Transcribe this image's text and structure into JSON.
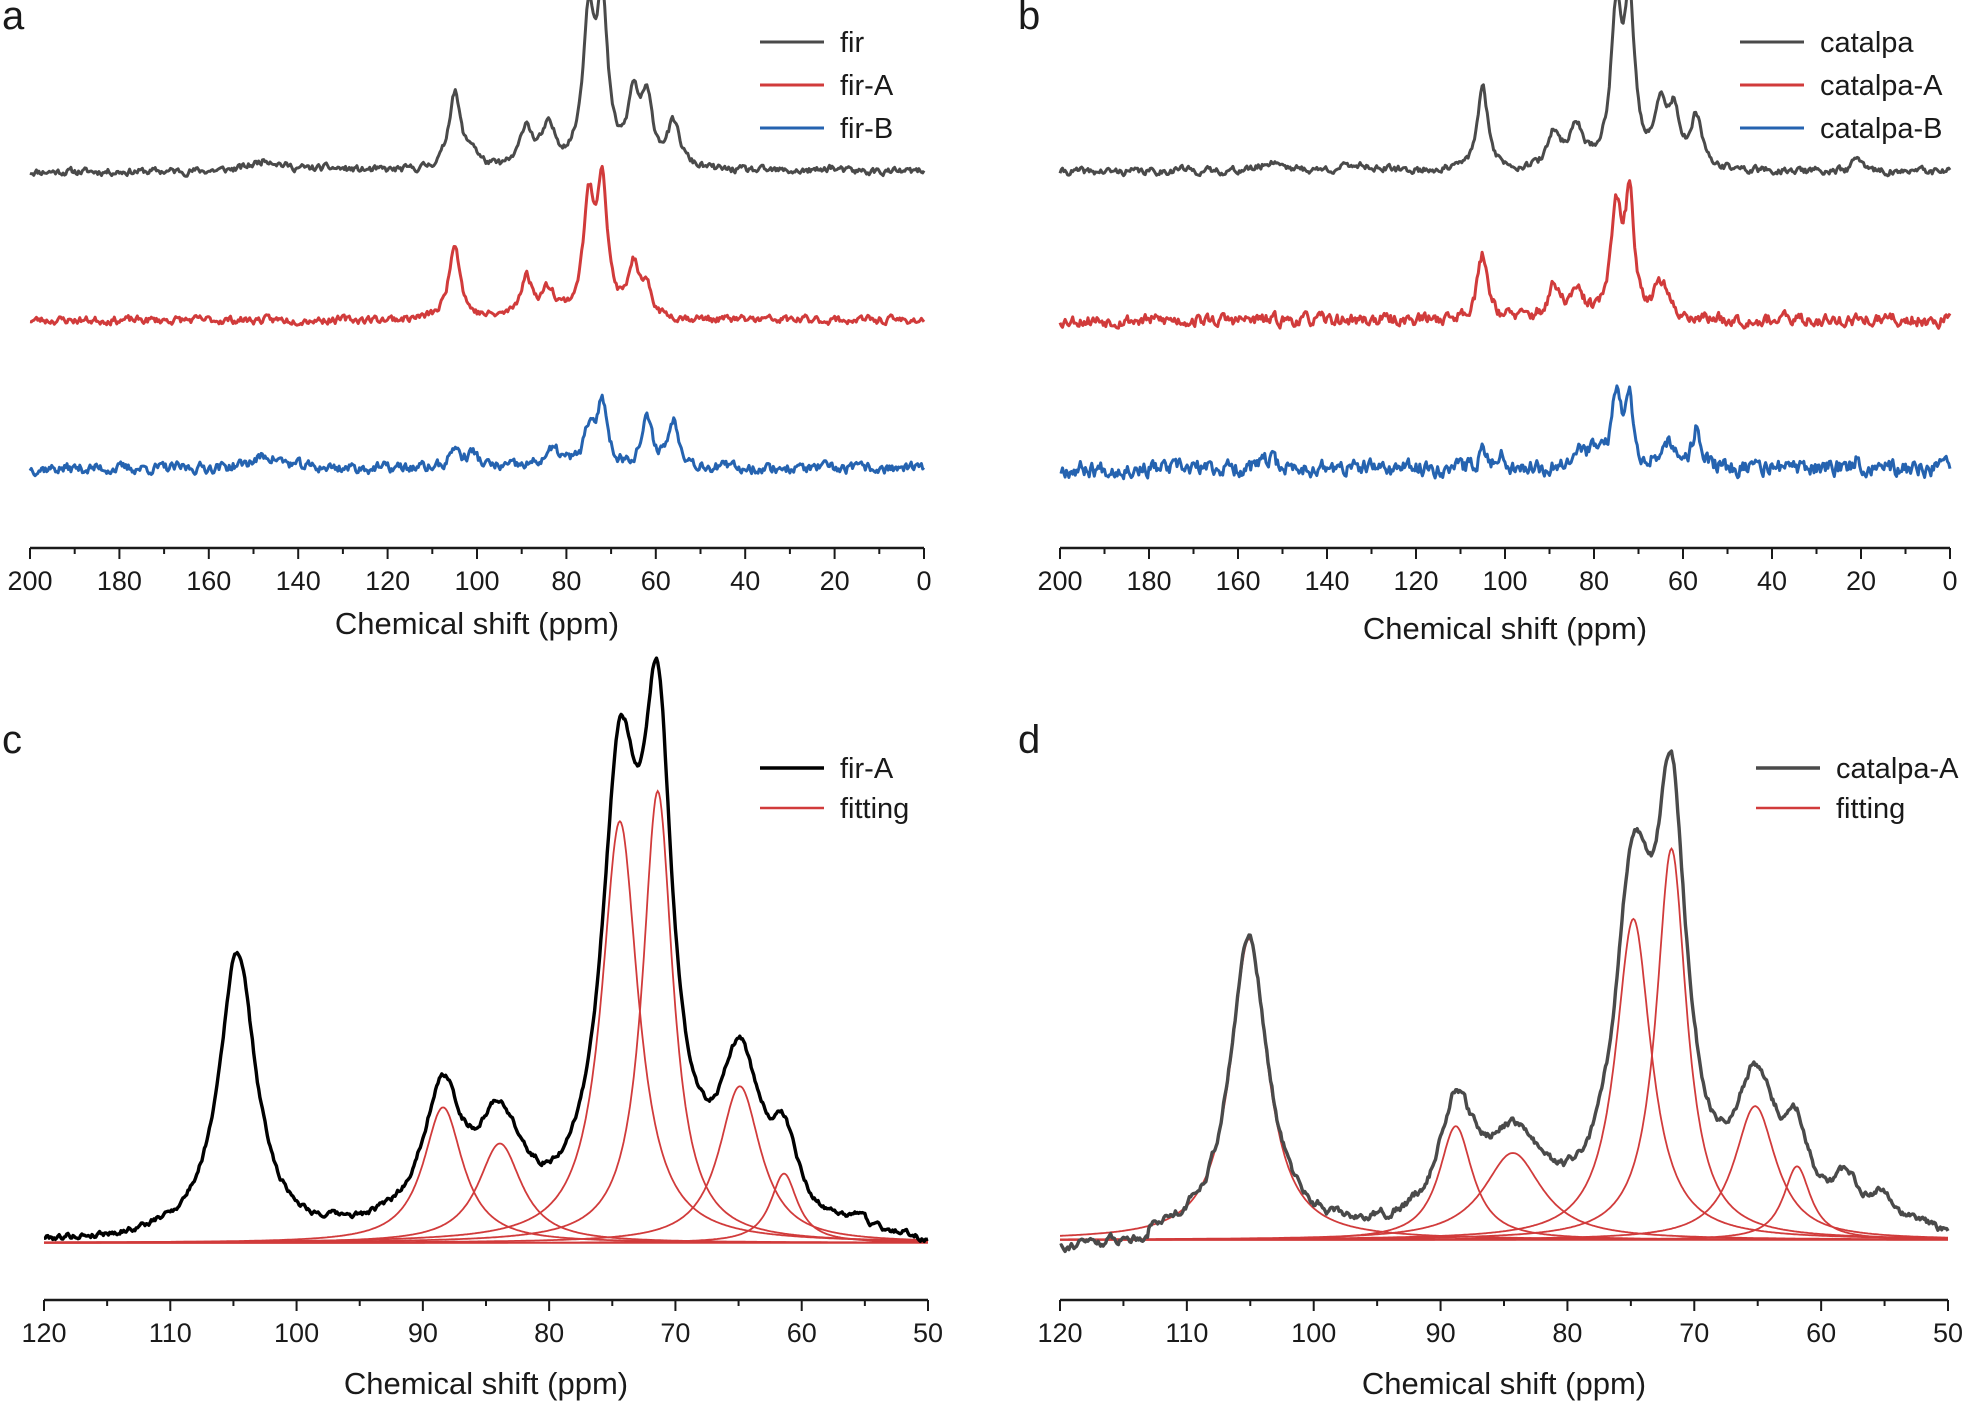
{
  "chart_data": [
    {
      "panel": "a",
      "type": "line",
      "xlabel": "Chemical shift (ppm)",
      "ylabel": "",
      "xlim": [
        200,
        0
      ],
      "xticks": [
        200,
        180,
        160,
        140,
        120,
        100,
        80,
        60,
        40,
        20,
        0
      ],
      "legend_position": "top-right",
      "series": [
        {
          "name": "fir",
          "color": "#4a4a4a",
          "offset": 2.0,
          "noise": 0.02,
          "seed": 11,
          "peaks": [
            [
              147,
              0.14,
              4
            ],
            [
              133,
              0.03,
              5
            ],
            [
              105,
              0.95,
              1.6
            ],
            [
              101,
              0.2,
              1.5
            ],
            [
              89,
              0.5,
              1.6
            ],
            [
              84,
              0.46,
              2
            ],
            [
              75,
              1.75,
              1.6
            ],
            [
              72,
              1.85,
              1.5
            ],
            [
              65,
              0.8,
              1.5
            ],
            [
              62,
              0.75,
              1.6
            ],
            [
              56,
              0.52,
              1.8
            ],
            [
              21,
              0.06,
              1
            ]
          ]
        },
        {
          "name": "fir-A",
          "color": "#d13b3b",
          "offset": 1.0,
          "noise": 0.022,
          "seed": 23,
          "peaks": [
            [
              105,
              0.95,
              1.5
            ],
            [
              89,
              0.48,
              1.6
            ],
            [
              84,
              0.32,
              2
            ],
            [
              75,
              1.33,
              1.5
            ],
            [
              72,
              1.6,
              1.4
            ],
            [
              65,
              0.62,
              1.4
            ],
            [
              62,
              0.3,
              1.4
            ]
          ]
        },
        {
          "name": "fir-B",
          "color": "#2563b0",
          "offset": 0.0,
          "noise": 0.03,
          "seed": 37,
          "peaks": [
            [
              147,
              0.15,
              4
            ],
            [
              105,
              0.25,
              1.2
            ],
            [
              101,
              0.18,
              1.5
            ],
            [
              83,
              0.2,
              2.5
            ],
            [
              75,
              0.42,
              1.3
            ],
            [
              72,
              0.82,
              1.3
            ],
            [
              62,
              0.55,
              1.5
            ],
            [
              56,
              0.55,
              1.6
            ]
          ]
        }
      ]
    },
    {
      "panel": "b",
      "type": "line",
      "xlabel": "Chemical shift (ppm)",
      "ylabel": "",
      "xlim": [
        200,
        0
      ],
      "xticks": [
        200,
        180,
        160,
        140,
        120,
        100,
        80,
        60,
        40,
        20,
        0
      ],
      "legend_position": "top-right",
      "series": [
        {
          "name": "catalpa",
          "color": "#4a4a4a",
          "offset": 2.0,
          "noise": 0.02,
          "seed": 41,
          "peaks": [
            [
              173,
              0.04,
              1.5
            ],
            [
              152,
              0.12,
              3
            ],
            [
              133,
              0.08,
              4
            ],
            [
              105,
              1.0,
              1.5
            ],
            [
              89,
              0.42,
              1.6
            ],
            [
              84,
              0.5,
              2
            ],
            [
              75,
              1.8,
              1.5
            ],
            [
              72,
              1.9,
              1.4
            ],
            [
              65,
              0.7,
              1.5
            ],
            [
              62,
              0.65,
              1.5
            ],
            [
              57,
              0.6,
              1.5
            ],
            [
              21,
              0.18,
              1
            ]
          ]
        },
        {
          "name": "catalpa-A",
          "color": "#d13b3b",
          "offset": 1.0,
          "noise": 0.035,
          "seed": 53,
          "peaks": [
            [
              105,
              0.78,
              1.5
            ],
            [
              89,
              0.35,
              1.6
            ],
            [
              84,
              0.28,
              2
            ],
            [
              75,
              1.25,
              1.4
            ],
            [
              72,
              1.4,
              1.3
            ],
            [
              65,
              0.42,
              1.8
            ]
          ]
        },
        {
          "name": "catalpa-B",
          "color": "#2563b0",
          "offset": 0.0,
          "noise": 0.045,
          "seed": 67,
          "peaks": [
            [
              153,
              0.1,
              2
            ],
            [
              105,
              0.2,
              1.2
            ],
            [
              101,
              0.15,
              1.3
            ],
            [
              84,
              0.25,
              1.5
            ],
            [
              80,
              0.2,
              1.5
            ],
            [
              75,
              0.9,
              1.2
            ],
            [
              72,
              0.8,
              1.1
            ],
            [
              64,
              0.35,
              1.5
            ],
            [
              57,
              0.48,
              1.2
            ],
            [
              21,
              0.12,
              1
            ]
          ]
        }
      ]
    },
    {
      "panel": "c",
      "type": "line",
      "xlabel": "Chemical shift (ppm)",
      "ylabel": "",
      "xlim": [
        120,
        50
      ],
      "xticks": [
        120,
        110,
        100,
        90,
        80,
        70,
        60,
        50
      ],
      "legend_position": "top-right",
      "series": [
        {
          "name": "fir-A",
          "color": "#000000",
          "width": 3.4,
          "noise": 0.008,
          "seed": 79,
          "components": [
            [
              104.7,
              0.95,
              1.75
            ],
            [
              88.5,
              0.45,
              1.9
            ],
            [
              83.9,
              0.33,
              2.1
            ],
            [
              74.4,
              1.4,
              1.75
            ],
            [
              71.4,
              1.5,
              1.45
            ],
            [
              64.9,
              0.52,
              2.0
            ],
            [
              61.4,
              0.23,
              1.3
            ],
            [
              55.8,
              0.03,
              1.1
            ]
          ]
        },
        {
          "name": "fitting",
          "color": "#d13b3b",
          "width": 1.8,
          "components_only": true,
          "components": [
            [
              88.4,
              0.45,
              1.9
            ],
            [
              83.9,
              0.33,
              2.1
            ],
            [
              74.4,
              1.4,
              1.75
            ],
            [
              71.4,
              1.5,
              1.45
            ],
            [
              64.9,
              0.52,
              2.0
            ],
            [
              61.4,
              0.23,
              1.3
            ]
          ]
        }
      ]
    },
    {
      "panel": "d",
      "type": "line",
      "xlabel": "Chemical shift (ppm)",
      "ylabel": "",
      "xlim": [
        120,
        50
      ],
      "xticks": [
        120,
        110,
        100,
        90,
        80,
        70,
        60,
        50
      ],
      "legend_position": "top-right",
      "series": [
        {
          "name": "catalpa-A",
          "color": "#4a4a4a",
          "width": 3.4,
          "noise": 0.01,
          "seed": 91,
          "components": [
            [
              105.1,
              0.9,
              1.75
            ],
            [
              88.8,
              0.34,
              1.6
            ],
            [
              84.3,
              0.26,
              2.8
            ],
            [
              74.8,
              0.96,
              1.7
            ],
            [
              71.8,
              1.17,
              1.45
            ],
            [
              65.2,
              0.4,
              2.0
            ],
            [
              61.9,
              0.22,
              1.3
            ],
            [
              58.0,
              0.1,
              1.2
            ],
            [
              55.2,
              0.1,
              1.4
            ]
          ]
        },
        {
          "name": "fitting",
          "color": "#d13b3b",
          "width": 1.8,
          "components_only": true,
          "components": [
            [
              105.1,
              0.9,
              1.75
            ],
            [
              88.8,
              0.34,
              1.6
            ],
            [
              84.3,
              0.26,
              2.8
            ],
            [
              74.8,
              0.96,
              1.7
            ],
            [
              71.8,
              1.17,
              1.45
            ],
            [
              65.2,
              0.4,
              2.0
            ],
            [
              61.9,
              0.22,
              1.3
            ]
          ]
        }
      ]
    }
  ]
}
